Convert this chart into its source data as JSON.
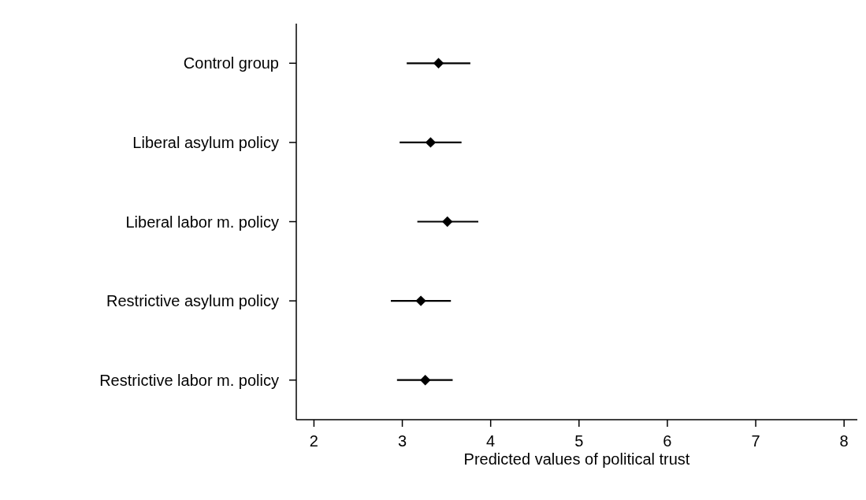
{
  "chart_data": {
    "type": "scatter",
    "orientation": "horizontal",
    "xlabel": "Predicted values of political trust",
    "categories": [
      "Control group",
      "Liberal asylum policy",
      "Liberal labor m. policy",
      "Restrictive asylum policy",
      "Restrictive labor m. policy"
    ],
    "values": [
      3.41,
      3.32,
      3.51,
      3.21,
      3.26
    ],
    "errors": [
      [
        3.05,
        3.77
      ],
      [
        2.97,
        3.67
      ],
      [
        3.17,
        3.86
      ],
      [
        2.87,
        3.55
      ],
      [
        2.94,
        3.57
      ]
    ],
    "color": "#000000",
    "marker": "diamond",
    "xlim": [
      1.8,
      8.15
    ],
    "xticks": [
      2,
      3,
      4,
      5,
      6,
      7,
      8
    ],
    "grid": false
  }
}
